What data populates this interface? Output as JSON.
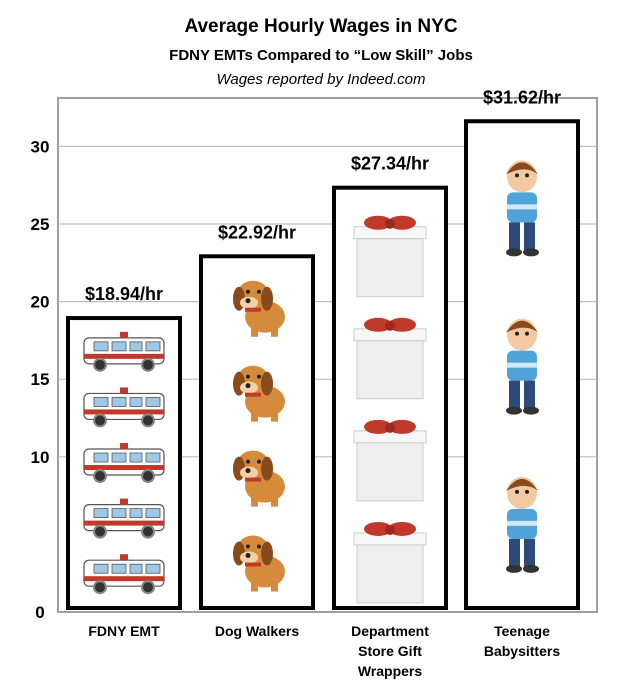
{
  "header": {
    "title": "Average Hourly Wages in NYC",
    "subtitle": "FDNY EMTs Compared to “Low Skill” Jobs",
    "source": "Wages reported by Indeed.com"
  },
  "chart_data": {
    "type": "bar",
    "title": "Average Hourly Wages in NYC",
    "subtitle": "FDNY EMTs Compared to “Low Skill” Jobs",
    "xlabel": "",
    "ylabel": "",
    "ylim": [
      0,
      32
    ],
    "yticks": [
      0,
      10,
      15,
      20,
      25,
      30
    ],
    "grid": true,
    "categories": [
      "FDNY EMT",
      "Dog Walkers",
      "Department Store Gift Wrappers",
      "Teenage Babysitters"
    ],
    "category_lines": [
      [
        "FDNY EMT"
      ],
      [
        "Dog Walkers"
      ],
      [
        "Department",
        "Store Gift",
        "Wrappers"
      ],
      [
        "Teenage",
        "Babysitters"
      ]
    ],
    "values": [
      18.94,
      22.92,
      27.34,
      31.62
    ],
    "value_labels": [
      "$18.94/hr",
      "$22.92/hr",
      "$27.34/hr",
      "$31.62/hr"
    ],
    "bar_icons": [
      "ambulance-icon",
      "dog-icon",
      "gift-box-icon",
      "boy-icon"
    ],
    "icon_counts": [
      5,
      4,
      4,
      3
    ],
    "colors": {
      "bar_border": "#000000",
      "grid": "#bdbdbd",
      "frame": "#a0a0a0",
      "ambulance_body": "#ffffff",
      "ambulance_stripe": "#c0392b",
      "dog": "#d68b3c",
      "gift_ribbon": "#c0392b",
      "gift_box": "#eeeeee",
      "boy_shirt": "#4fa3d9",
      "boy_pants": "#2c4a7a"
    }
  }
}
